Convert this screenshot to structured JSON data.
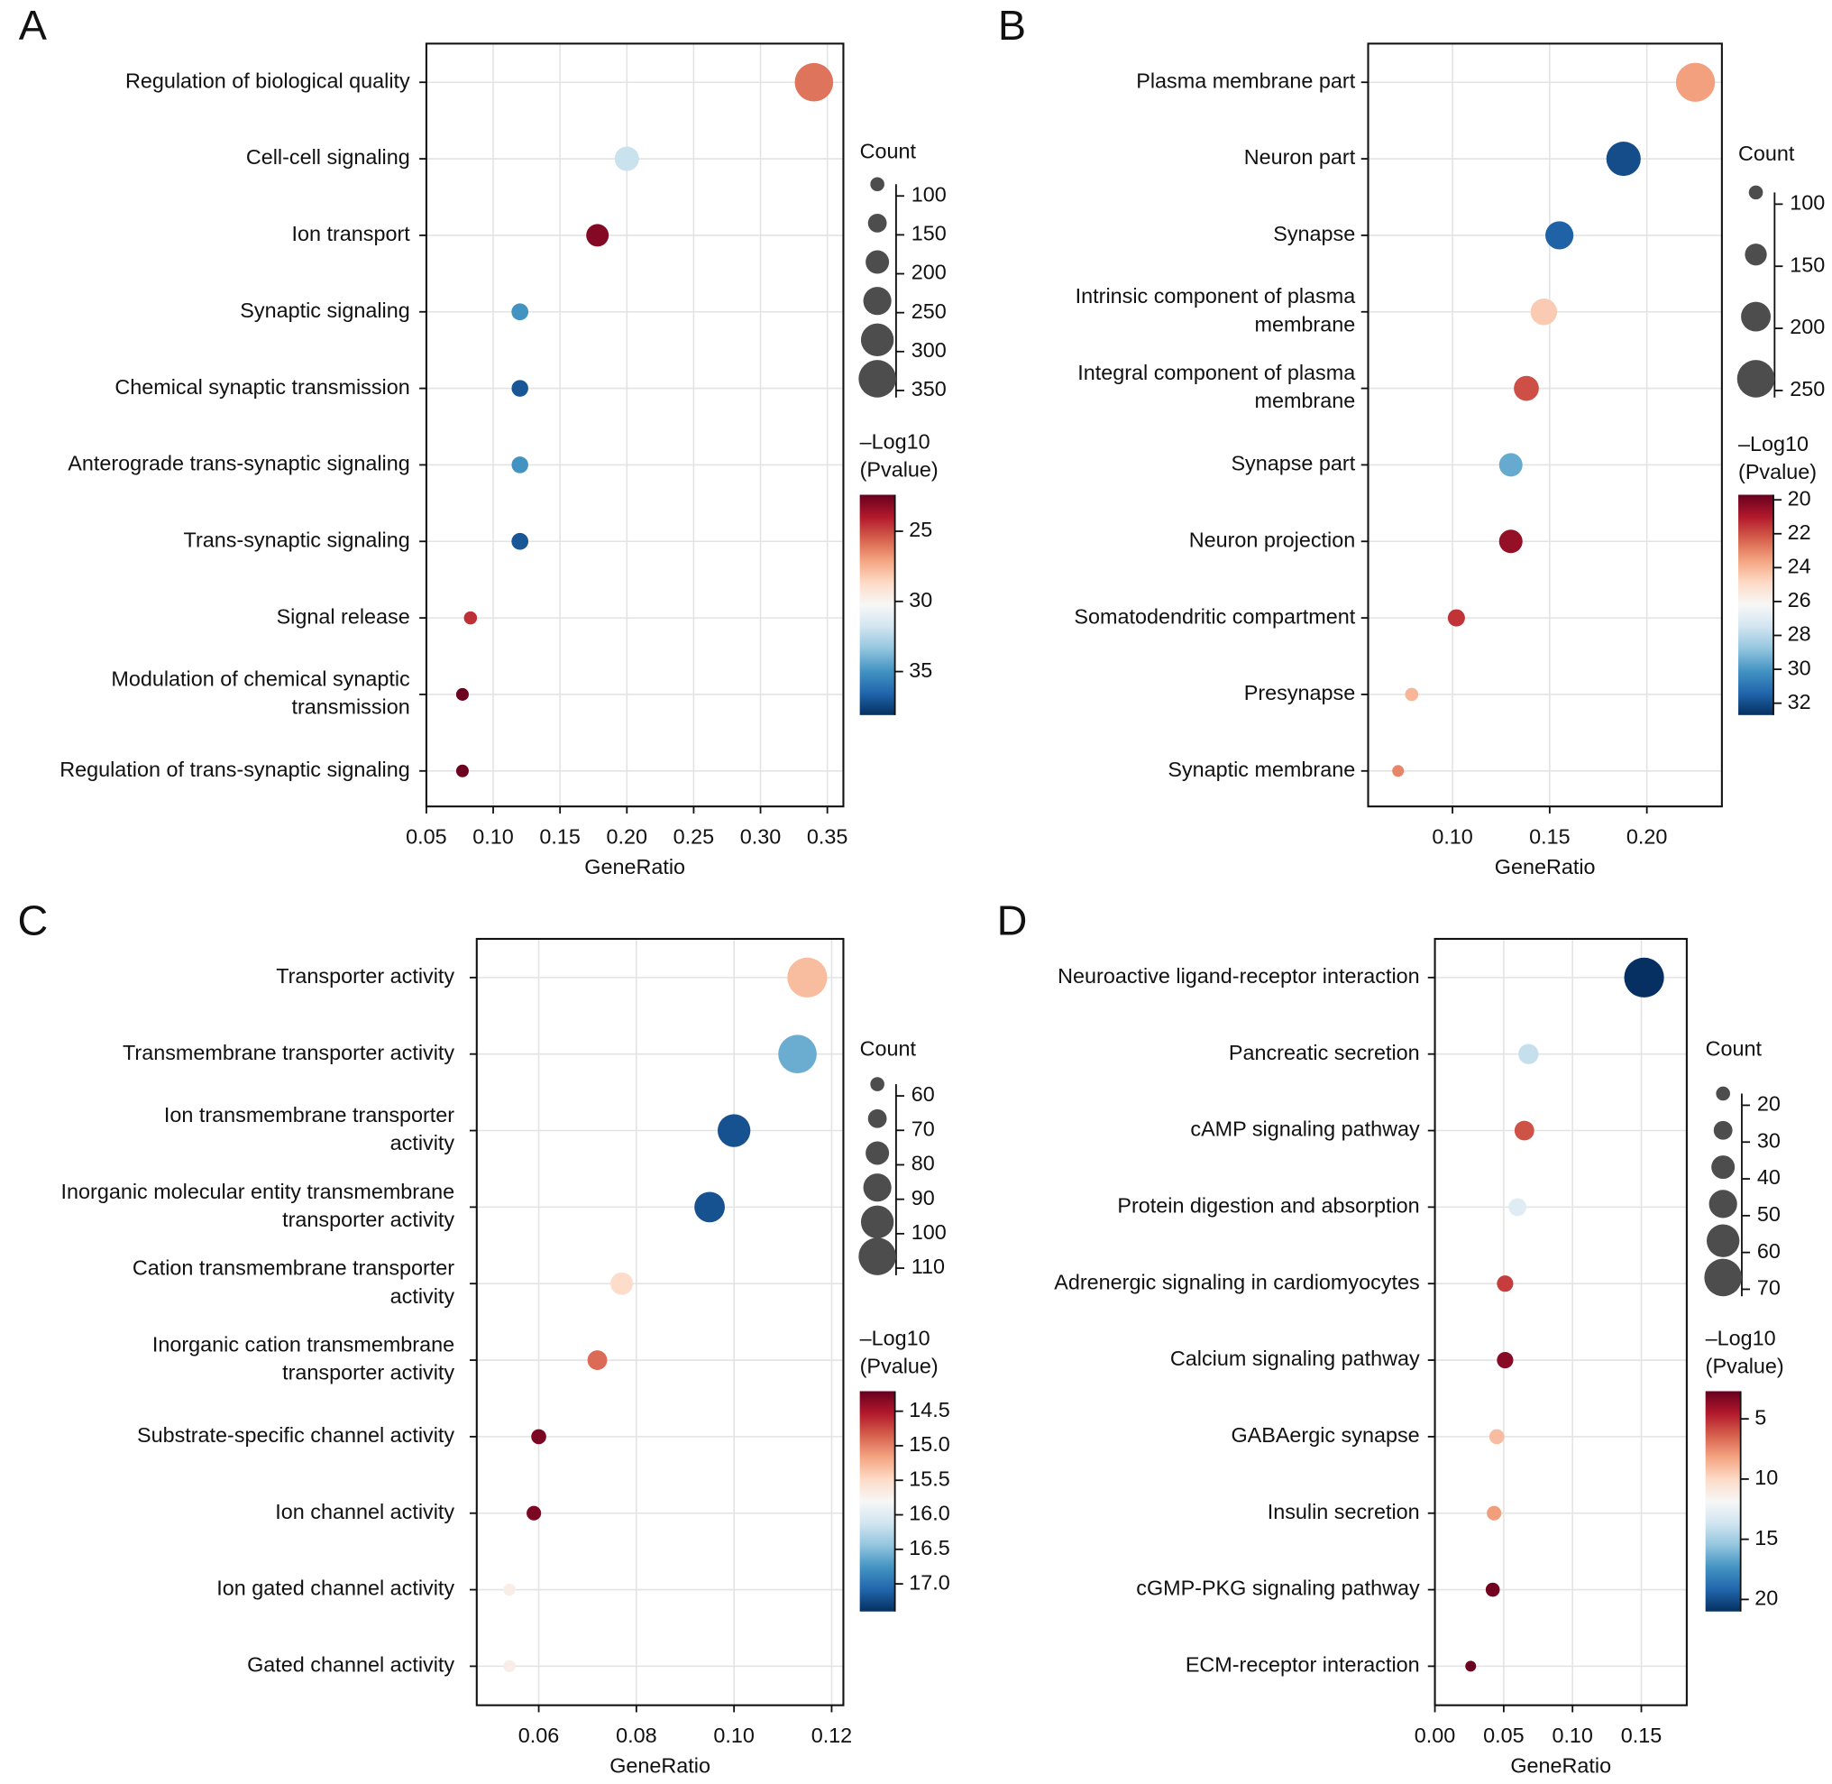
{
  "colormap": [
    "#67001f",
    "#b2182b",
    "#d6604d",
    "#f4a582",
    "#fddbc7",
    "#f7f7f7",
    "#d1e5f0",
    "#92c5de",
    "#4393c3",
    "#2166ac",
    "#053061"
  ],
  "chart_data": [
    {
      "type": "bubble",
      "panel": "A",
      "xlabel": "GeneRatio",
      "categories": [
        "Regulation of biological quality",
        "Cell-cell signaling",
        "Ion transport",
        "Synaptic signaling",
        "Chemical synaptic transmission",
        "Anterograde trans-synaptic signaling",
        "Trans-synaptic signaling",
        "Signal release",
        "Modulation of chemical synaptic\ntransmission",
        "Regulation of trans-synaptic signaling"
      ],
      "values": [
        0.34,
        0.2,
        0.178,
        0.12,
        0.12,
        0.12,
        0.12,
        0.083,
        0.077,
        0.077
      ],
      "sizes": [
        360,
        210,
        190,
        130,
        128,
        128,
        130,
        90,
        85,
        85
      ],
      "color_values": [
        26,
        32,
        23,
        35,
        37,
        35,
        37,
        24.5,
        22.5,
        22.5
      ],
      "xlim": [
        0.05,
        0.362
      ],
      "xticks": [
        0.05,
        {
          "value": 0.1,
          "label": "0.10"
        },
        0.15,
        {
          "value": 0.2,
          "label": "0.20"
        },
        0.25,
        {
          "value": 0.3,
          "label": "0.30"
        },
        0.35
      ],
      "size_title": "Count",
      "size_ticks": [
        100,
        150,
        200,
        250,
        300,
        350
      ],
      "color_title": "–Log10\n(Pvalue)",
      "clim": [
        22.4,
        38.1
      ],
      "cticks": [
        25,
        30,
        35
      ],
      "grid": true
    },
    {
      "type": "bubble",
      "panel": "B",
      "xlabel": "GeneRatio",
      "categories": [
        "Plasma membrane part",
        "Neuron part",
        "Synapse",
        "Intrinsic component of plasma\nmembrane",
        "Integral component of plasma\nmembrane",
        "Synapse part",
        "Neuron projection",
        "Somatodendritic compartment",
        "Presynapse",
        "Synaptic membrane"
      ],
      "values": [
        0.225,
        0.188,
        0.155,
        0.147,
        0.138,
        0.13,
        0.13,
        0.102,
        0.079,
        0.072
      ],
      "sizes": [
        260,
        230,
        190,
        180,
        170,
        160,
        160,
        120,
        95,
        85
      ],
      "color_values": [
        23.5,
        32,
        31.5,
        24.5,
        22,
        29.5,
        20.5,
        21.5,
        24,
        23
      ],
      "xlim": [
        0.0566,
        0.2386
      ],
      "xticks": [
        {
          "value": 0.1,
          "label": "0.10"
        },
        0.15,
        {
          "value": 0.2,
          "label": "0.20"
        }
      ],
      "size_title": "Count",
      "size_ticks": [
        100,
        150,
        200,
        250
      ],
      "color_title": "–Log10\n(Pvalue)",
      "clim": [
        19.7,
        32.7
      ],
      "cticks": [
        20,
        22,
        24,
        26,
        28,
        30,
        32
      ],
      "grid": true
    },
    {
      "type": "bubble",
      "panel": "C",
      "xlabel": "GeneRatio",
      "categories": [
        "Transporter activity",
        "Transmembrane transporter activity",
        "Ion transmembrane transporter\nactivity",
        "Inorganic molecular entity transmembrane\ntransporter activity",
        "Cation transmembrane transporter\nactivity",
        "Inorganic cation transmembrane\ntransporter activity",
        "Substrate-specific channel activity",
        "Ion channel activity",
        "Ion gated channel activity",
        "Gated channel activity"
      ],
      "values": [
        0.115,
        0.113,
        0.1,
        0.095,
        0.077,
        0.072,
        0.06,
        0.059,
        0.054,
        0.054
      ],
      "sizes": [
        115,
        112,
        100,
        95,
        78,
        72,
        62,
        61,
        56,
        56
      ],
      "color_values": [
        15.3,
        16.6,
        17.2,
        17.2,
        15.5,
        14.9,
        14.3,
        14.3,
        15.7,
        15.7
      ],
      "xlim": [
        0.0473,
        0.1224
      ],
      "xticks": [
        0.06,
        0.08,
        {
          "value": 0.1,
          "label": "0.10"
        },
        0.12
      ],
      "size_title": "Count",
      "size_ticks": [
        60,
        70,
        80,
        90,
        100,
        110
      ],
      "color_title": "–Log10\n(Pvalue)",
      "clim": [
        14.21,
        17.4
      ],
      "cticks": [
        14.5,
        {
          "value": 15,
          "label": "15.0"
        },
        15.5,
        {
          "value": 16,
          "label": "16.0"
        },
        16.5,
        {
          "value": 17,
          "label": "17.0"
        }
      ],
      "grid": true
    },
    {
      "type": "bubble",
      "panel": "D",
      "xlabel": "GeneRatio",
      "categories": [
        "Neuroactive ligand-receptor interaction",
        "Pancreatic secretion",
        "cAMP signaling pathway",
        "Protein digestion and absorption",
        "Adrenergic signaling in cardiomyocytes",
        "Calcium signaling pathway",
        "GABAergic synapse",
        "Insulin secretion",
        "cGMP-PKG signaling pathway",
        "ECM-receptor interaction"
      ],
      "values": [
        0.152,
        0.068,
        0.065,
        0.06,
        0.051,
        0.051,
        0.045,
        0.043,
        0.042,
        0.026
      ],
      "sizes": [
        75,
        33,
        32,
        28,
        25,
        25,
        22,
        21,
        20,
        13
      ],
      "color_values": [
        21,
        14,
        6,
        13,
        5.5,
        3.5,
        9,
        8,
        3,
        2.8
      ],
      "xlim": [
        0,
        0.183
      ],
      "xticks": [
        {
          "value": 0,
          "label": "0.00"
        },
        0.05,
        {
          "value": 0.1,
          "label": "0.10"
        },
        0.15
      ],
      "size_title": "Count",
      "size_ticks": [
        20,
        30,
        40,
        50,
        60,
        70
      ],
      "color_title": "–Log10\n(Pvalue)",
      "clim": [
        2.7,
        21
      ],
      "cticks": [
        5,
        10,
        15,
        20
      ],
      "grid": true
    }
  ]
}
